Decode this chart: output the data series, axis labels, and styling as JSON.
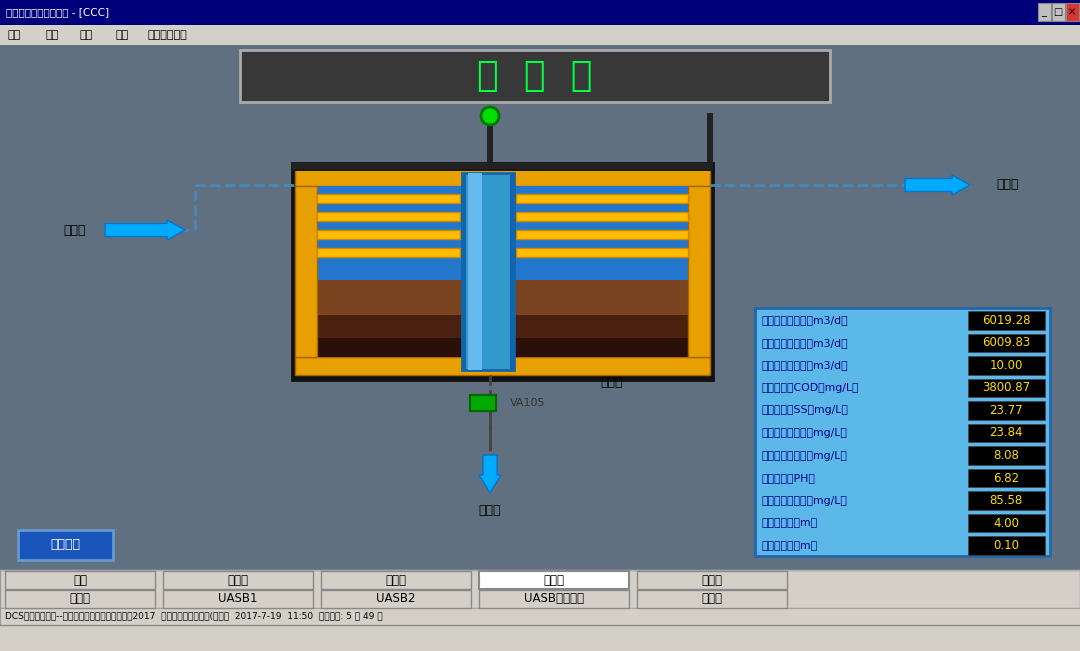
{
  "title": "初  沉  池",
  "title_color": "#00ff44",
  "bg_color": "#607080",
  "window_title": "东方仿真内部开发产品 - [CCC]",
  "menu_items": [
    "工艺",
    "画面",
    "工具",
    "帮助",
    "硬件故障修复"
  ],
  "left_label": "调节池",
  "right_label": "反应池",
  "bottom_label": "浓缩池",
  "tank_label": "初沉池",
  "valve_label": "VA105",
  "control_btn": "控制面板",
  "nav_row1": [
    "总图",
    "粗格栅",
    "调节池",
    "初沉池",
    "气浮池"
  ],
  "nav_row2": [
    "配水井",
    "UASB1",
    "UASB2",
    "UASB出口管网",
    "下一页"
  ],
  "status_text": "DCS集散控制系统--工业废水处理工艺仿真大赛版2017  单机运行（未连接数(网站）  2017-7-19  11:50  操作计时: 5 分 49 秒",
  "data_panel": {
    "bg_color": "#5bb8e8",
    "border_color": "#2266aa",
    "rows": [
      {
        "label": "初沉池进水流量（m3/d）",
        "value": "6019.28"
      },
      {
        "label": "初沉池出水流量（m3/d）",
        "value": "6009.83"
      },
      {
        "label": "初沉池排泥流量（m3/d）",
        "value": "10.00"
      },
      {
        "label": "初沉池出水COD（mg/L）",
        "value": "3800.87"
      },
      {
        "label": "初沉池出水SS（mg/L）",
        "value": "23.77"
      },
      {
        "label": "初沉池出水总氮（mg/L）",
        "value": "23.84"
      },
      {
        "label": "初沉池出水总磷（mg/L）",
        "value": "8.08"
      },
      {
        "label": "初沉池出水PH值",
        "value": "6.82"
      },
      {
        "label": "初沉池出水油类（mg/L）",
        "value": "85.58"
      },
      {
        "label": "初沉池液位（m）",
        "value": "4.00"
      },
      {
        "label": "初沉池泥位（m）",
        "value": "0.10"
      }
    ],
    "label_color": "#00008b",
    "value_color": "#ffdd00",
    "value_bg": "#000000"
  },
  "titlebar_color": "#00008b",
  "menubar_color": "#d4d0c8",
  "main_bg": "#607080",
  "nav_bg": "#d4d0c8"
}
